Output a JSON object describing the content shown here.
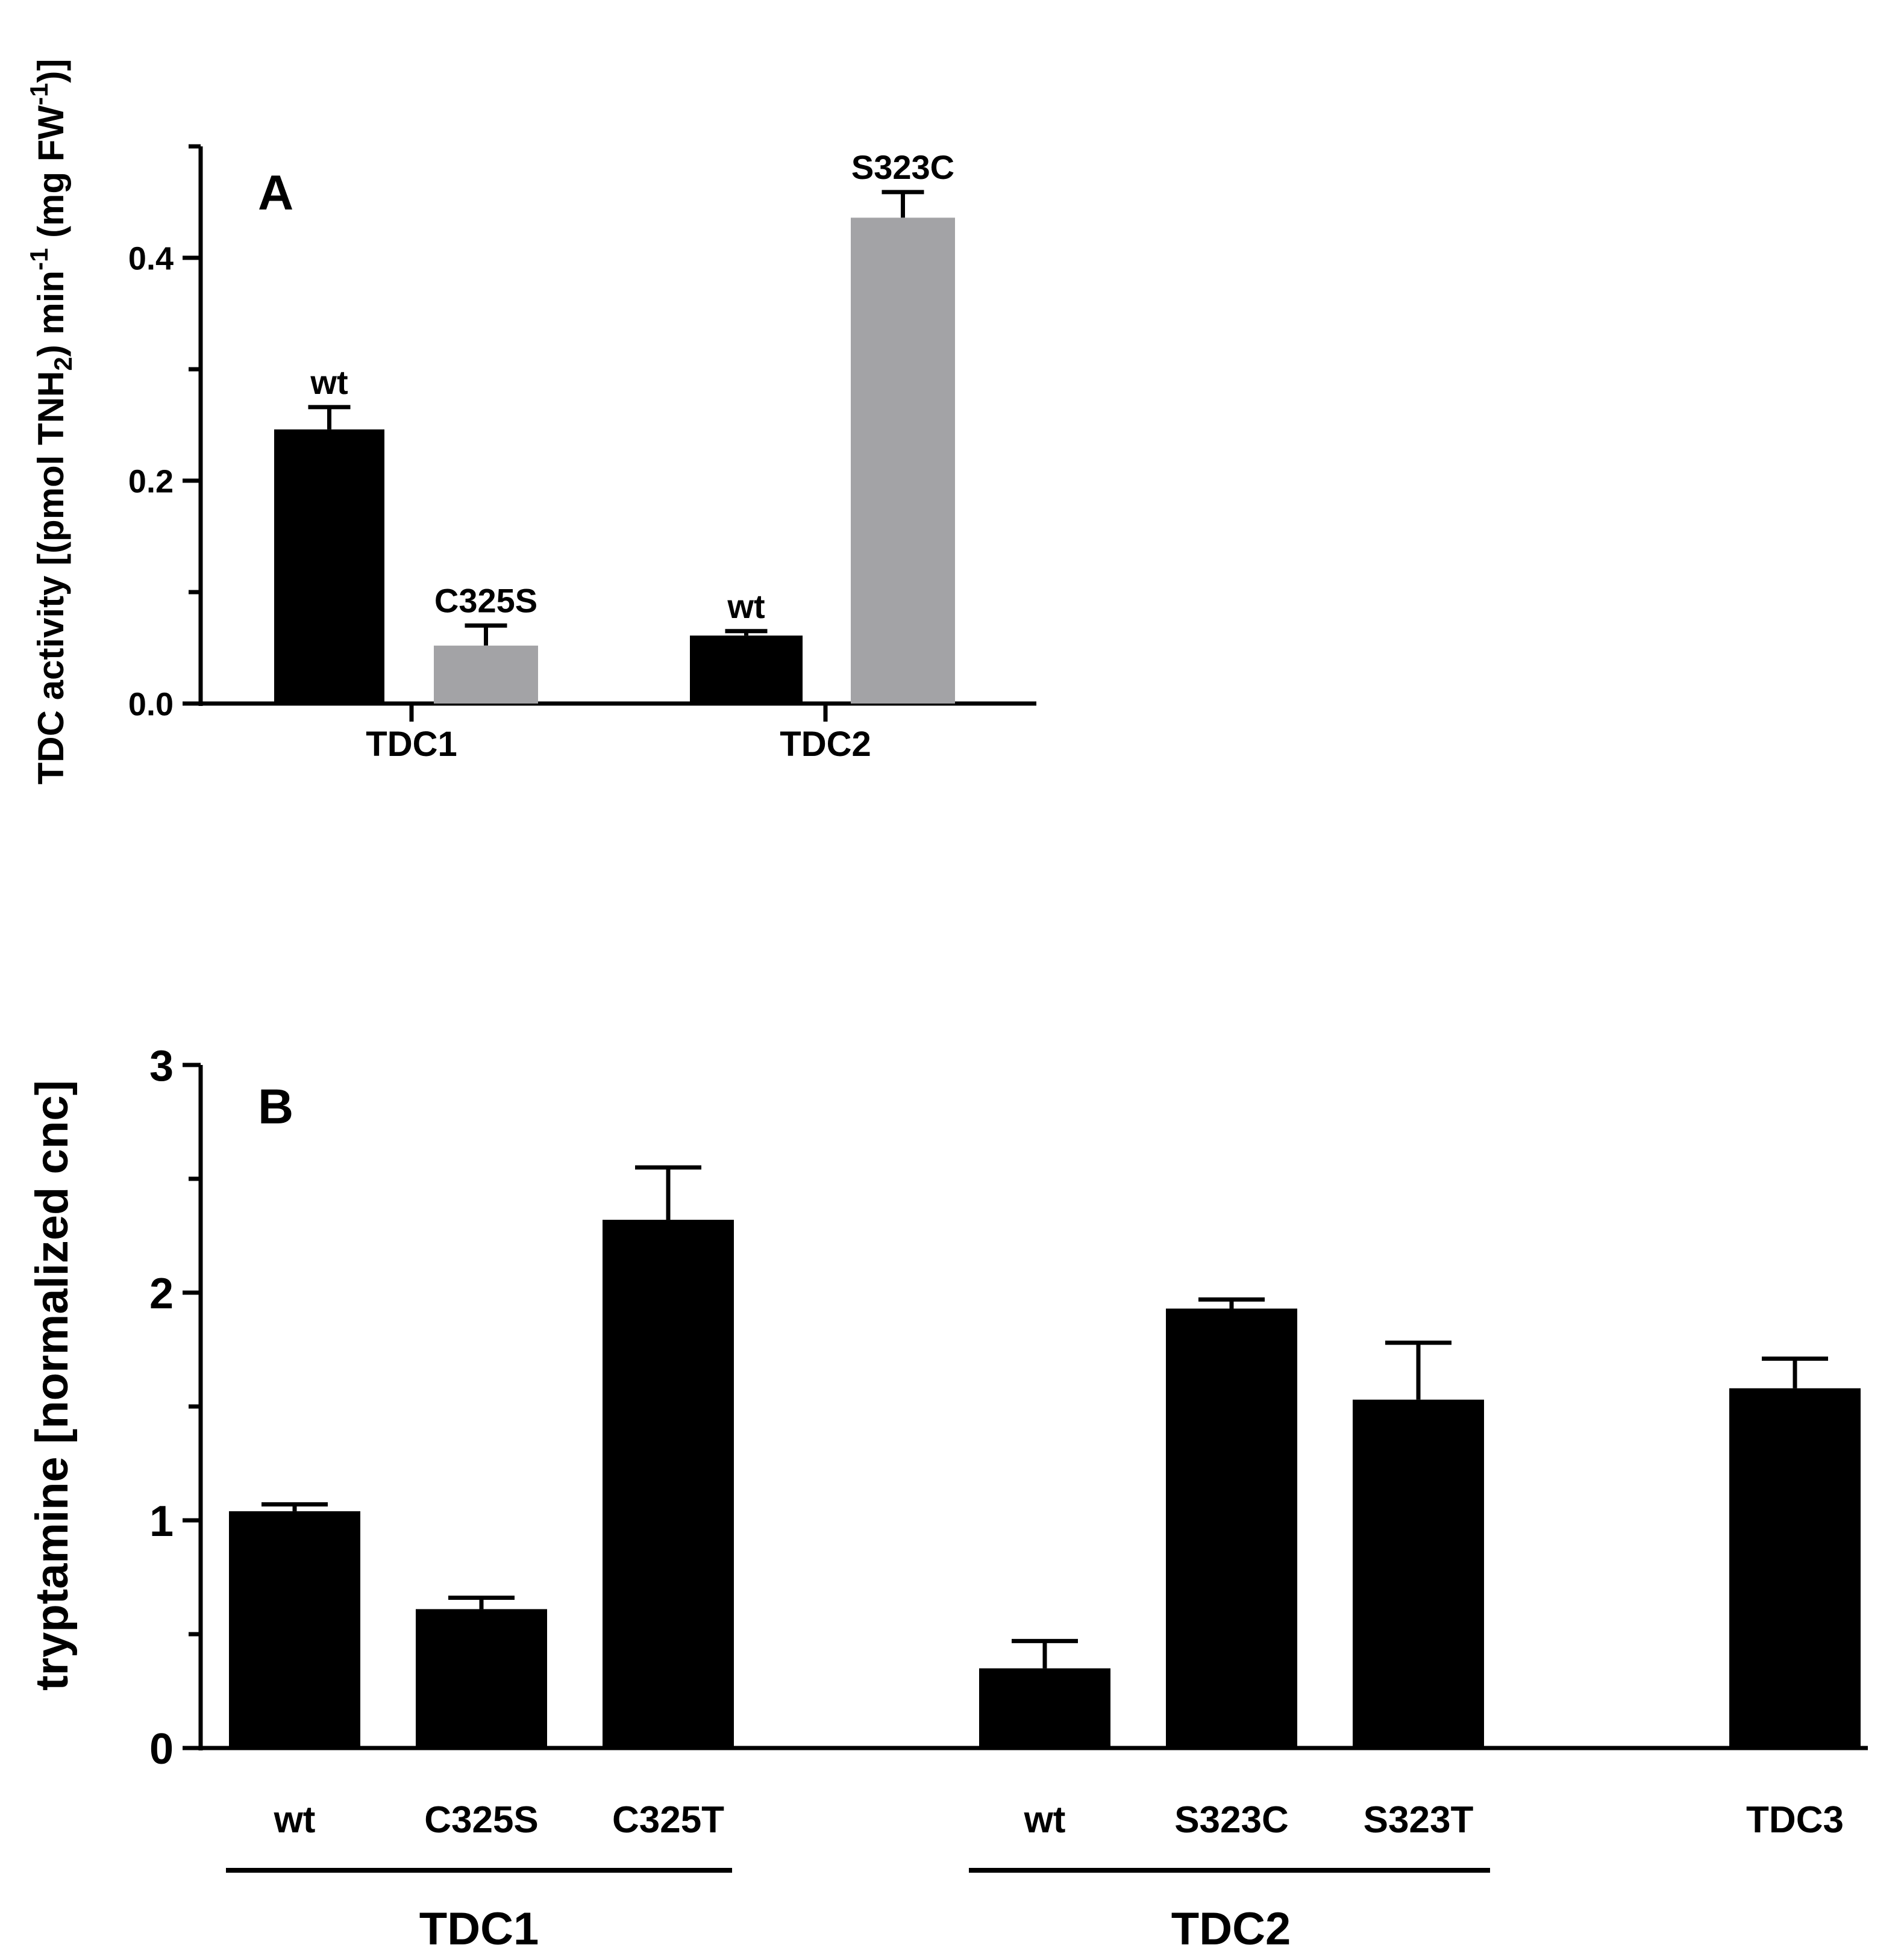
{
  "chart_data": [
    {
      "type": "bar",
      "panel_label": "A",
      "ylabel_parts": [
        "TDC activity [(pmol TNH",
        "2",
        ") min",
        "-1",
        " (mg FW",
        "-1",
        ")]"
      ],
      "ylim": [
        0,
        0.5
      ],
      "yticks": [
        0.0,
        0.2,
        0.4
      ],
      "ytick_labels": [
        "0.0",
        "0.2",
        "0.4"
      ],
      "categories": [
        "TDC1",
        "TDC2"
      ],
      "bars": [
        {
          "group": "TDC1",
          "label": "wt",
          "value": 0.246,
          "error": 0.02,
          "color": "#000000"
        },
        {
          "group": "TDC1",
          "label": "C325S",
          "value": 0.052,
          "error": 0.018,
          "color": "#a3a3a6"
        },
        {
          "group": "TDC2",
          "label": "wt",
          "value": 0.061,
          "error": 0.004,
          "color": "#000000"
        },
        {
          "group": "TDC2",
          "label": "S323C",
          "value": 0.436,
          "error": 0.023,
          "color": "#a3a3a6"
        }
      ]
    },
    {
      "type": "bar",
      "panel_label": "B",
      "ylabel": "tryptamine [normalized cnc]",
      "ylim": [
        0,
        3
      ],
      "yticks": [
        0,
        1,
        2,
        3
      ],
      "ytick_labels": [
        "0",
        "1",
        "2",
        "3"
      ],
      "bars": [
        {
          "group": "TDC1",
          "label": "wt",
          "value": 1.04,
          "error": 0.03,
          "color": "#000000"
        },
        {
          "group": "TDC1",
          "label": "C325S",
          "value": 0.61,
          "error": 0.05,
          "color": "#000000"
        },
        {
          "group": "TDC1",
          "label": "C325T",
          "value": 2.32,
          "error": 0.23,
          "color": "#000000"
        },
        {
          "group": "TDC2",
          "label": "wt",
          "value": 0.35,
          "error": 0.12,
          "color": "#000000"
        },
        {
          "group": "TDC2",
          "label": "S323C",
          "value": 1.93,
          "error": 0.04,
          "color": "#000000"
        },
        {
          "group": "TDC2",
          "label": "S323T",
          "value": 1.53,
          "error": 0.25,
          "color": "#000000"
        },
        {
          "group": "TDC3",
          "label": "TDC3",
          "value": 1.58,
          "error": 0.13,
          "color": "#000000"
        }
      ],
      "group_labels": [
        "TDC1",
        "TDC2"
      ]
    }
  ]
}
